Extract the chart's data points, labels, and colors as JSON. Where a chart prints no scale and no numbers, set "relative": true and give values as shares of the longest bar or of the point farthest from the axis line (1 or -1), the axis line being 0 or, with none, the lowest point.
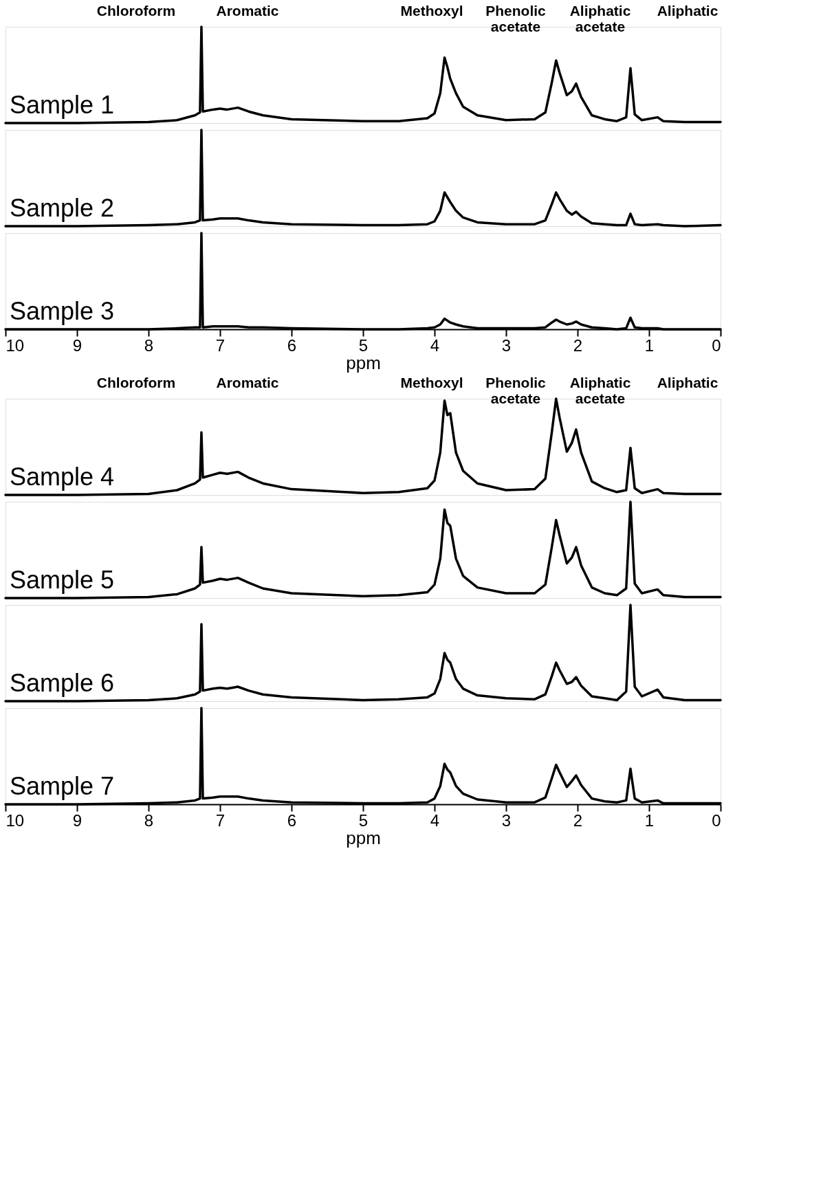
{
  "chart_data": [
    {
      "type": "line",
      "relative": true,
      "grid": false,
      "legend": false,
      "tick_labels": false,
      "xlim": [
        10,
        0
      ],
      "annotations": [
        "Chloroform",
        "Aromatic",
        "Methoxyl",
        "Phenolic\nacetate",
        "Aliphatic\nacetate",
        "Aliphatic"
      ],
      "x": [
        10,
        9,
        8,
        7.6,
        7.35,
        7.28,
        7.26,
        7.24,
        7.1,
        7.0,
        6.9,
        6.75,
        6.6,
        6.4,
        6.0,
        5.0,
        4.5,
        4.1,
        4.0,
        3.92,
        3.86,
        3.82,
        3.78,
        3.7,
        3.6,
        3.4,
        3.0,
        2.6,
        2.45,
        2.36,
        2.3,
        2.25,
        2.15,
        2.08,
        2.02,
        1.95,
        1.8,
        1.62,
        1.45,
        1.32,
        1.26,
        1.2,
        1.1,
        0.88,
        0.8,
        0.5,
        0.0
      ],
      "series": [
        {
          "name": "Sample 1",
          "color": "#000000",
          "values": [
            0,
            0,
            0.01,
            0.03,
            0.08,
            0.11,
            1,
            0.12,
            0.14,
            0.15,
            0.14,
            0.16,
            0.12,
            0.08,
            0.04,
            0.02,
            0.02,
            0.05,
            0.1,
            0.31,
            0.68,
            0.58,
            0.46,
            0.31,
            0.17,
            0.08,
            0.03,
            0.04,
            0.11,
            0.42,
            0.65,
            0.52,
            0.29,
            0.33,
            0.41,
            0.27,
            0.08,
            0.04,
            0.02,
            0.06,
            0.57,
            0.09,
            0.03,
            0.06,
            0.02,
            0.01,
            0.01
          ]
        }
      ]
    },
    {
      "type": "line",
      "relative": true,
      "grid": false,
      "legend": false,
      "tick_labels": false,
      "xlim": [
        10,
        0
      ],
      "x": [
        10,
        9,
        8,
        7.6,
        7.35,
        7.28,
        7.26,
        7.24,
        7.1,
        7.0,
        6.9,
        6.75,
        6.6,
        6.4,
        6.0,
        5.0,
        4.5,
        4.1,
        4.0,
        3.92,
        3.86,
        3.82,
        3.78,
        3.7,
        3.6,
        3.4,
        3.0,
        2.6,
        2.45,
        2.36,
        2.3,
        2.25,
        2.15,
        2.08,
        2.02,
        1.95,
        1.8,
        1.62,
        1.45,
        1.32,
        1.26,
        1.2,
        1.1,
        0.88,
        0.8,
        0.5,
        0.0
      ],
      "series": [
        {
          "name": "Sample 2",
          "color": "#000000",
          "values": [
            0,
            0,
            0.01,
            0.02,
            0.04,
            0.06,
            1,
            0.06,
            0.07,
            0.08,
            0.08,
            0.08,
            0.06,
            0.04,
            0.02,
            0.01,
            0.01,
            0.02,
            0.05,
            0.16,
            0.35,
            0.3,
            0.25,
            0.16,
            0.09,
            0.04,
            0.02,
            0.02,
            0.06,
            0.23,
            0.35,
            0.28,
            0.16,
            0.12,
            0.15,
            0.1,
            0.03,
            0.02,
            0.01,
            0.01,
            0.13,
            0.02,
            0.01,
            0.02,
            0.01,
            0,
            0.01
          ]
        }
      ]
    },
    {
      "type": "line",
      "relative": true,
      "grid": false,
      "legend": false,
      "tick_labels": "x",
      "xlim": [
        10,
        0
      ],
      "xticks": [
        10,
        9,
        8,
        7,
        6,
        5,
        4,
        3,
        2,
        1,
        0
      ],
      "xlabel": "ppm",
      "x": [
        10,
        9,
        8,
        7.6,
        7.35,
        7.28,
        7.26,
        7.24,
        7.1,
        7.0,
        6.9,
        6.75,
        6.6,
        6.4,
        6.0,
        5.0,
        4.5,
        4.1,
        4.0,
        3.92,
        3.86,
        3.82,
        3.78,
        3.7,
        3.6,
        3.4,
        3.0,
        2.6,
        2.45,
        2.36,
        2.3,
        2.25,
        2.15,
        2.08,
        2.02,
        1.95,
        1.8,
        1.62,
        1.45,
        1.32,
        1.26,
        1.2,
        1.1,
        0.88,
        0.8,
        0.5,
        0.0
      ],
      "series": [
        {
          "name": "Sample 3",
          "color": "#000000",
          "values": [
            0,
            0,
            0,
            0.01,
            0.02,
            0.02,
            1,
            0.02,
            0.03,
            0.03,
            0.03,
            0.03,
            0.02,
            0.02,
            0.01,
            0,
            0,
            0.01,
            0.02,
            0.05,
            0.11,
            0.09,
            0.07,
            0.05,
            0.03,
            0.01,
            0.01,
            0.01,
            0.02,
            0.07,
            0.1,
            0.08,
            0.05,
            0.06,
            0.08,
            0.05,
            0.02,
            0.01,
            0,
            0.01,
            0.12,
            0.02,
            0.01,
            0.01,
            0,
            0,
            0
          ]
        }
      ]
    },
    {
      "type": "line",
      "relative": true,
      "grid": false,
      "legend": false,
      "tick_labels": false,
      "xlim": [
        10,
        0
      ],
      "annotations": [
        "Chloroform",
        "Aromatic",
        "Methoxyl",
        "Phenolic\nacetate",
        "Aliphatic\nacetate",
        "Aliphatic"
      ],
      "x": [
        10,
        9,
        8,
        7.6,
        7.35,
        7.28,
        7.26,
        7.24,
        7.1,
        7.0,
        6.9,
        6.75,
        6.6,
        6.4,
        6.0,
        5.0,
        4.5,
        4.1,
        4.0,
        3.92,
        3.86,
        3.82,
        3.78,
        3.7,
        3.6,
        3.4,
        3.0,
        2.6,
        2.45,
        2.36,
        2.3,
        2.25,
        2.15,
        2.08,
        2.02,
        1.95,
        1.8,
        1.62,
        1.45,
        1.32,
        1.26,
        1.2,
        1.1,
        0.88,
        0.8,
        0.5,
        0.0
      ],
      "series": [
        {
          "name": "Sample 4",
          "color": "#000000",
          "values": [
            0,
            0,
            0.01,
            0.05,
            0.12,
            0.16,
            0.65,
            0.18,
            0.21,
            0.23,
            0.22,
            0.24,
            0.18,
            0.12,
            0.06,
            0.02,
            0.03,
            0.07,
            0.15,
            0.44,
            0.98,
            0.83,
            0.85,
            0.44,
            0.25,
            0.12,
            0.05,
            0.06,
            0.17,
            0.65,
            1,
            0.8,
            0.45,
            0.54,
            0.68,
            0.44,
            0.14,
            0.07,
            0.03,
            0.05,
            0.49,
            0.07,
            0.02,
            0.06,
            0.02,
            0.01,
            0.01
          ]
        }
      ]
    },
    {
      "type": "line",
      "relative": true,
      "grid": false,
      "legend": false,
      "tick_labels": false,
      "xlim": [
        10,
        0
      ],
      "x": [
        10,
        9,
        8,
        7.6,
        7.35,
        7.28,
        7.26,
        7.24,
        7.1,
        7.0,
        6.9,
        6.75,
        6.6,
        6.4,
        6.0,
        5.0,
        4.5,
        4.1,
        4.0,
        3.92,
        3.86,
        3.82,
        3.78,
        3.7,
        3.6,
        3.4,
        3.0,
        2.6,
        2.45,
        2.36,
        2.3,
        2.25,
        2.15,
        2.08,
        2.02,
        1.95,
        1.8,
        1.62,
        1.45,
        1.32,
        1.26,
        1.2,
        1.1,
        0.88,
        0.8,
        0.5,
        0.0
      ],
      "series": [
        {
          "name": "Sample 5",
          "color": "#000000",
          "values": [
            0,
            0,
            0.01,
            0.04,
            0.1,
            0.14,
            0.53,
            0.16,
            0.18,
            0.2,
            0.19,
            0.21,
            0.16,
            0.1,
            0.05,
            0.02,
            0.03,
            0.06,
            0.14,
            0.41,
            0.92,
            0.78,
            0.75,
            0.41,
            0.23,
            0.11,
            0.05,
            0.05,
            0.14,
            0.53,
            0.81,
            0.65,
            0.36,
            0.42,
            0.53,
            0.34,
            0.11,
            0.05,
            0.03,
            0.1,
            1,
            0.15,
            0.05,
            0.09,
            0.03,
            0.01,
            0.01
          ]
        }
      ]
    },
    {
      "type": "line",
      "relative": true,
      "grid": false,
      "legend": false,
      "tick_labels": false,
      "xlim": [
        10,
        0
      ],
      "x": [
        10,
        9,
        8,
        7.6,
        7.35,
        7.28,
        7.26,
        7.24,
        7.1,
        7.0,
        6.9,
        6.75,
        6.6,
        6.4,
        6.0,
        5.0,
        4.5,
        4.1,
        4.0,
        3.92,
        3.86,
        3.82,
        3.78,
        3.7,
        3.6,
        3.4,
        3.0,
        2.6,
        2.45,
        2.36,
        2.3,
        2.25,
        2.15,
        2.08,
        2.02,
        1.95,
        1.8,
        1.62,
        1.45,
        1.32,
        1.26,
        1.2,
        1.1,
        0.88,
        0.8,
        0.5,
        0.0
      ],
      "series": [
        {
          "name": "Sample 6",
          "color": "#000000",
          "values": [
            0,
            0,
            0.01,
            0.03,
            0.07,
            0.1,
            0.8,
            0.11,
            0.13,
            0.14,
            0.13,
            0.15,
            0.11,
            0.07,
            0.04,
            0.01,
            0.02,
            0.04,
            0.08,
            0.23,
            0.5,
            0.43,
            0.4,
            0.23,
            0.13,
            0.06,
            0.03,
            0.02,
            0.07,
            0.26,
            0.4,
            0.32,
            0.18,
            0.2,
            0.25,
            0.16,
            0.05,
            0.03,
            0.01,
            0.1,
            1,
            0.15,
            0.05,
            0.12,
            0.04,
            0.01,
            0.01
          ]
        }
      ]
    },
    {
      "type": "line",
      "relative": true,
      "grid": false,
      "legend": false,
      "tick_labels": "x",
      "xlim": [
        10,
        0
      ],
      "xticks": [
        10,
        9,
        8,
        7,
        6,
        5,
        4,
        3,
        2,
        1,
        0
      ],
      "xlabel": "ppm",
      "x": [
        10,
        9,
        8,
        7.6,
        7.35,
        7.28,
        7.26,
        7.24,
        7.1,
        7.0,
        6.9,
        6.75,
        6.6,
        6.4,
        6.0,
        5.0,
        4.5,
        4.1,
        4.0,
        3.92,
        3.86,
        3.82,
        3.78,
        3.7,
        3.6,
        3.4,
        3.0,
        2.6,
        2.45,
        2.36,
        2.3,
        2.25,
        2.15,
        2.08,
        2.02,
        1.95,
        1.8,
        1.62,
        1.45,
        1.32,
        1.26,
        1.2,
        1.1,
        0.88,
        0.8,
        0.5,
        0.0
      ],
      "series": [
        {
          "name": "Sample 7",
          "color": "#000000",
          "values": [
            0,
            0,
            0.01,
            0.02,
            0.04,
            0.06,
            1,
            0.06,
            0.07,
            0.08,
            0.08,
            0.08,
            0.06,
            0.04,
            0.02,
            0.01,
            0.01,
            0.02,
            0.06,
            0.19,
            0.42,
            0.36,
            0.33,
            0.19,
            0.11,
            0.05,
            0.02,
            0.02,
            0.07,
            0.27,
            0.41,
            0.33,
            0.18,
            0.24,
            0.3,
            0.2,
            0.06,
            0.03,
            0.02,
            0.04,
            0.37,
            0.06,
            0.02,
            0.04,
            0.01,
            0.01,
            0.01
          ]
        }
      ]
    }
  ]
}
